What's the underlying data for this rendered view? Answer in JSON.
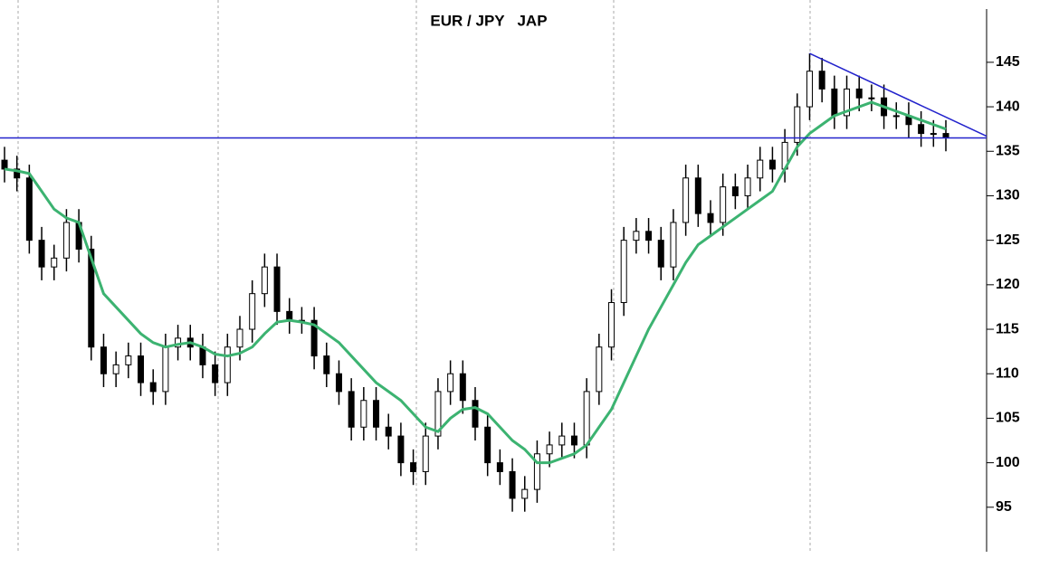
{
  "chart_data": {
    "type": "candlestick",
    "title": "EUR / JPY   JAP",
    "categories": [
      null,
      null,
      null,
      null,
      null,
      null,
      null,
      null,
      null,
      null,
      null,
      null,
      null,
      null,
      null,
      null,
      null,
      null,
      null,
      null,
      null,
      null,
      null,
      null,
      null,
      null,
      null,
      null,
      null,
      null,
      null,
      null,
      null,
      null,
      null,
      null,
      null,
      null,
      null,
      null,
      null,
      null,
      null,
      null,
      null,
      null,
      null,
      null,
      null,
      null,
      null,
      null,
      null,
      null,
      null,
      null,
      null,
      null,
      null,
      null,
      null,
      null,
      null,
      null,
      null,
      null,
      null,
      null,
      null,
      null,
      null,
      null,
      null,
      null,
      null,
      null,
      null
    ],
    "open": [
      134,
      133,
      132,
      125,
      122,
      123,
      127,
      124,
      113,
      110,
      111,
      112,
      109,
      108,
      113,
      114,
      113,
      111,
      109,
      113,
      115,
      119,
      122,
      117,
      116,
      116,
      112,
      110,
      108,
      104,
      107,
      104,
      103,
      100,
      99,
      103,
      108,
      110,
      107,
      104,
      100,
      99,
      96,
      97,
      101,
      102,
      103,
      102,
      108,
      113,
      118,
      125,
      126,
      125,
      122,
      127,
      132,
      128,
      127,
      131,
      130,
      132,
      134,
      133,
      136,
      140,
      144,
      142,
      139,
      142,
      141,
      141,
      139,
      139,
      138,
      137,
      137
    ],
    "high": [
      135.5,
      134.5,
      133.5,
      126.5,
      124.5,
      128.5,
      128.5,
      125.5,
      114.5,
      112.5,
      113.5,
      113.5,
      110.5,
      114.5,
      115.5,
      115.5,
      114.5,
      112.5,
      114.5,
      116.5,
      120.5,
      123.5,
      123.5,
      118.5,
      117.5,
      117.5,
      113.5,
      111.5,
      109.5,
      108.5,
      108.5,
      105.5,
      104.5,
      101.5,
      104.5,
      109.5,
      111.5,
      111.5,
      108.5,
      105.5,
      101.5,
      100.5,
      98.5,
      102.5,
      103.5,
      104.5,
      104.5,
      109.5,
      114.5,
      119.5,
      126.5,
      127.5,
      127.5,
      126.5,
      128.5,
      133.5,
      133.5,
      129.5,
      132.5,
      132.5,
      133.5,
      135.5,
      135.5,
      137.5,
      141.5,
      146,
      145.5,
      143.5,
      143.5,
      143.5,
      142.5,
      142.5,
      140.5,
      140.5,
      139.5,
      138.5,
      138.5
    ],
    "low": [
      131.5,
      130.5,
      123.5,
      120.5,
      120.5,
      121.5,
      122.5,
      111.5,
      108.5,
      108.5,
      109.5,
      107.5,
      106.5,
      106.5,
      111.5,
      111.5,
      109.5,
      107.5,
      107.5,
      111.5,
      113.5,
      117.5,
      115.5,
      114.5,
      114.5,
      110.5,
      108.5,
      106.5,
      102.5,
      102.5,
      102.5,
      101.5,
      98.5,
      97.5,
      97.5,
      101.5,
      106.5,
      105.5,
      102.5,
      98.5,
      97.5,
      94.5,
      94.5,
      95.5,
      99.5,
      100.5,
      100.5,
      100.5,
      106.5,
      111.5,
      116.5,
      123.5,
      123.5,
      120.5,
      120.5,
      125.5,
      126.5,
      125.5,
      125.5,
      128.5,
      128.5,
      130.5,
      131.5,
      131.5,
      134.5,
      138.5,
      140.5,
      137.5,
      137.5,
      139.5,
      139.5,
      137.5,
      137.5,
      136.5,
      135.5,
      135.5,
      135
    ],
    "close": [
      133,
      132,
      125,
      122,
      123,
      127,
      124,
      113,
      110,
      111,
      112,
      109,
      108,
      113,
      114,
      113,
      111,
      109,
      113,
      115,
      119,
      122,
      117,
      116,
      116,
      112,
      110,
      108,
      104,
      107,
      104,
      103,
      100,
      99,
      103,
      108,
      110,
      107,
      104,
      100,
      99,
      96,
      97,
      101,
      102,
      103,
      102,
      108,
      113,
      118,
      125,
      126,
      125,
      122,
      127,
      132,
      128,
      127,
      131,
      130,
      132,
      134,
      133,
      136,
      140,
      144,
      142,
      139,
      142,
      141,
      141,
      139,
      139,
      138,
      137,
      137,
      136.5
    ],
    "moving_average": {
      "color": "#3cb371",
      "values": [
        133,
        132.8,
        132.5,
        130.5,
        128.5,
        127.5,
        127,
        123,
        119,
        117.5,
        116,
        114.5,
        113.5,
        113,
        113.3,
        113.5,
        113,
        112.2,
        112,
        112.3,
        113,
        114.5,
        115.8,
        116,
        115.8,
        115.5,
        114.5,
        113.5,
        112,
        110.5,
        109,
        108,
        107,
        105.5,
        104,
        103.5,
        105,
        106,
        106.2,
        105.5,
        104,
        102.5,
        101.5,
        100,
        100,
        100.5,
        101,
        102,
        104,
        106,
        109,
        112,
        115,
        117.5,
        120,
        122.5,
        124.5,
        125.5,
        126.5,
        127.5,
        128.5,
        129.5,
        130.5,
        133,
        135.5,
        137,
        138,
        139,
        139.5,
        140,
        140.5,
        140,
        139.5,
        139,
        138.5,
        138,
        137.5
      ]
    },
    "support": 136.5,
    "resistance": [
      146,
      136.7
    ],
    "trendline_color": "#2222cc",
    "ylim": [
      90,
      152
    ],
    "yticks": [
      95,
      100,
      105,
      110,
      115,
      120,
      125,
      130,
      135,
      140,
      145
    ]
  }
}
